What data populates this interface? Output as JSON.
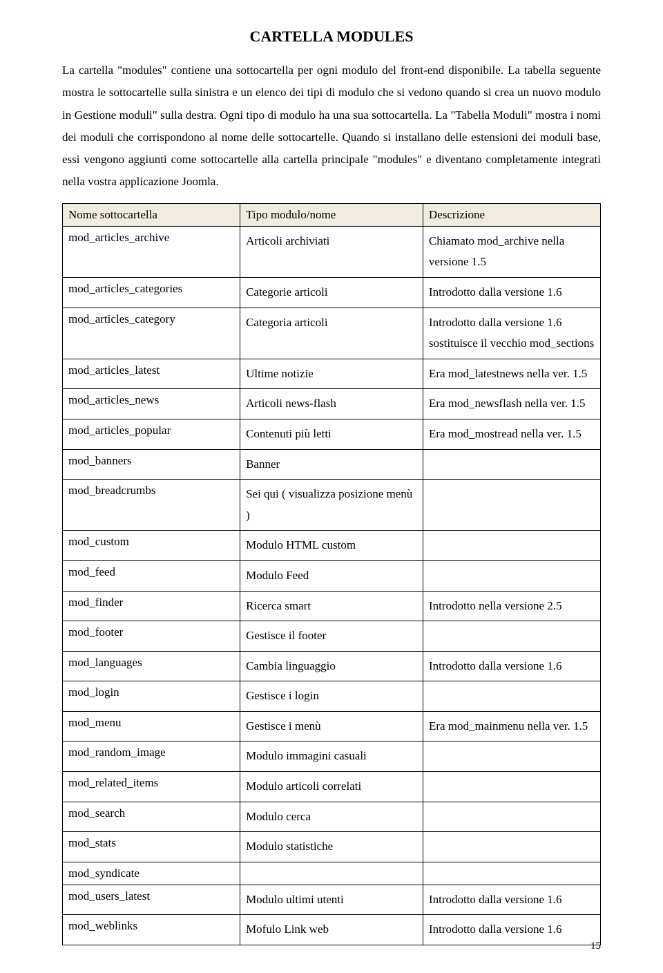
{
  "title": "CARTELLA MODULES",
  "paragraph": "La cartella \"modules\" contiene una sottocartella per ogni modulo del front-end disponibile. La tabella seguente mostra le sottocartelle sulla sinistra e un elenco dei tipi di modulo che si vedono quando si crea un nuovo modulo in Gestione moduli\" sulla destra. Ogni tipo di modulo ha una sua sottocartella. La \"Tabella Moduli\" mostra i nomi dei moduli che corrispondono al nome delle sottocartelle. Quando si installano delle estensioni dei moduli base, essi vengono aggiunti come sottocartelle alla cartella principale \"modules\" e diventano completamente integrati nella vostra applicazione Joomla.",
  "table": {
    "headers": [
      "Nome sottocartella",
      "Tipo modulo/nome",
      "Descrizione"
    ],
    "rows": [
      [
        "mod_articles_archive",
        "Articoli archiviati",
        "Chiamato mod_archive nella versione 1.5"
      ],
      [
        "mod_articles_categories",
        "Categorie articoli",
        "Introdotto dalla versione 1.6"
      ],
      [
        "mod_articles_category",
        "Categoria articoli",
        "Introdotto dalla versione 1.6 sostituisce il vecchio mod_sections"
      ],
      [
        "mod_articles_latest",
        "Ultime notizie",
        "Era mod_latestnews nella ver. 1.5"
      ],
      [
        "mod_articles_news",
        "Articoli news-flash",
        "Era mod_newsflash nella ver. 1.5"
      ],
      [
        "mod_articles_popular",
        "Contenuti più letti",
        "Era mod_mostread nella ver. 1.5"
      ],
      [
        "mod_banners",
        "Banner",
        ""
      ],
      [
        "mod_breadcrumbs",
        "Sei qui ( visualizza posizione menù )",
        ""
      ],
      [
        "mod_custom",
        "Modulo HTML custom",
        ""
      ],
      [
        "mod_feed",
        "Modulo Feed",
        ""
      ],
      [
        "mod_finder",
        "Ricerca smart",
        "Introdotto nella versione 2.5"
      ],
      [
        "mod_footer",
        "Gestisce il footer",
        ""
      ],
      [
        "mod_languages",
        "Cambia linguaggio",
        "Introdotto dalla versione 1.6"
      ],
      [
        "mod_login",
        "Gestisce i login",
        ""
      ],
      [
        "mod_menu",
        "Gestisce i menù",
        "Era mod_mainmenu nella ver. 1.5"
      ],
      [
        "mod_random_image",
        "Modulo immagini casuali",
        ""
      ],
      [
        "mod_related_items",
        "Modulo articoli correlati",
        ""
      ],
      [
        "mod_search",
        "Modulo cerca",
        ""
      ],
      [
        "mod_stats",
        "Modulo statistiche",
        ""
      ],
      [
        "mod_syndicate",
        "",
        ""
      ],
      [
        "mod_users_latest",
        "Modulo ultimi utenti",
        "Introdotto dalla versione 1.6"
      ],
      [
        "mod_weblinks",
        "Mofulo Link web",
        "Introdotto dalla versione 1.6"
      ]
    ]
  },
  "pageNumber": "15"
}
